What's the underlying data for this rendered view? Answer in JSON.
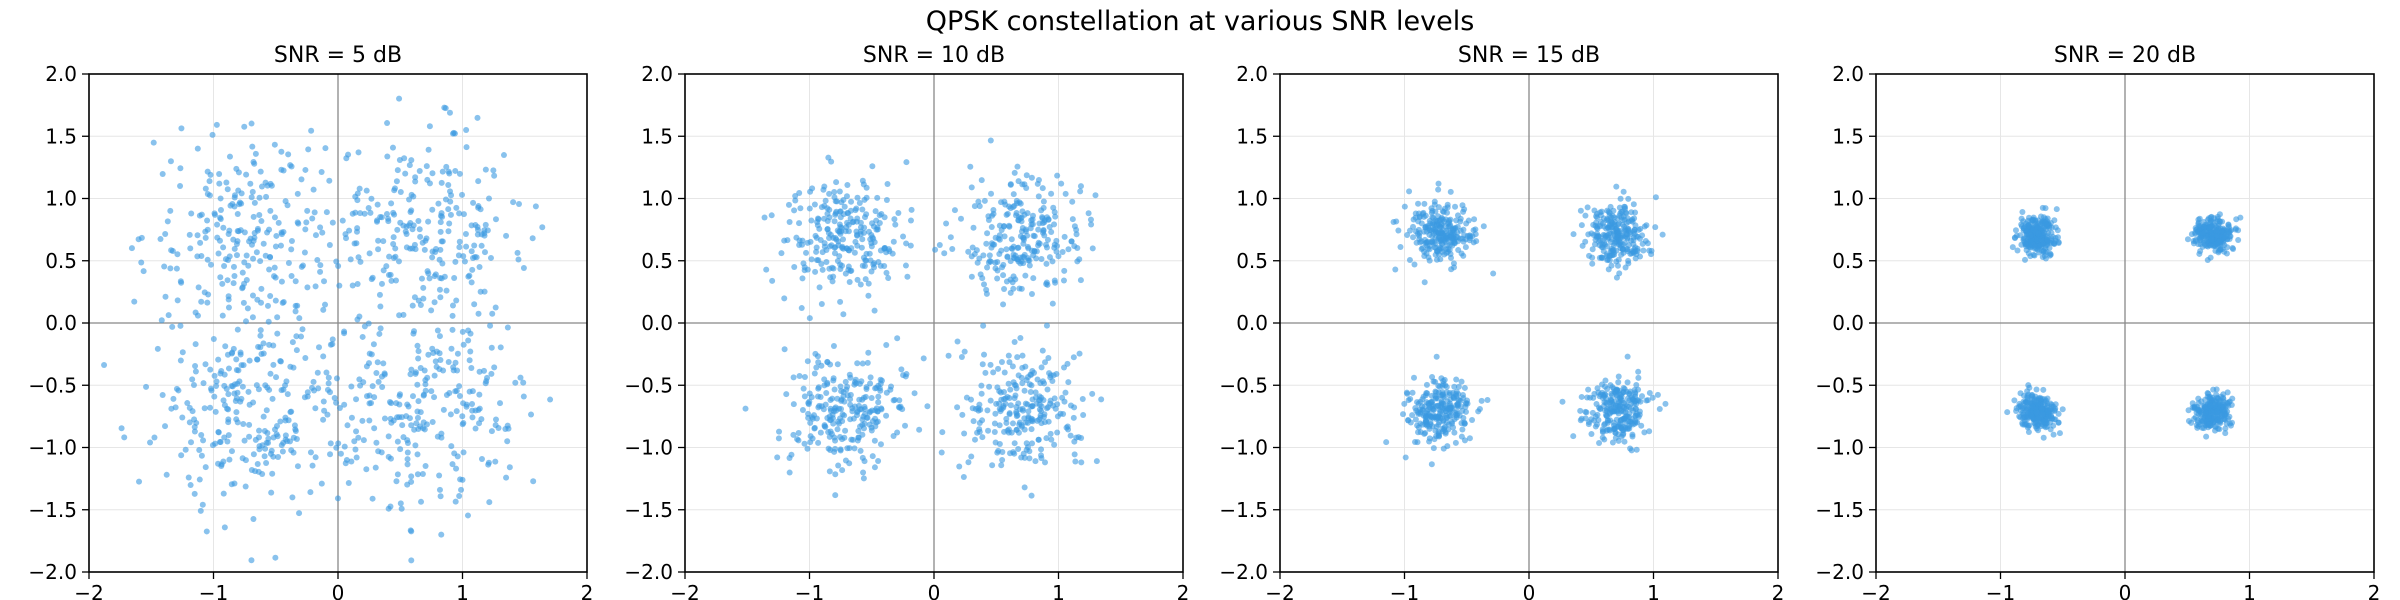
{
  "figure": {
    "title": "QPSK constellation at various SNR levels",
    "point_color": "#3b9ae1",
    "axis_line_color": "#888888",
    "grid_color": "#e6e6e6"
  },
  "chart_data": [
    {
      "type": "scatter",
      "title": "SNR = 5 dB",
      "snr_db": 5,
      "xlabel": "",
      "ylabel": "",
      "xlim": [
        -2,
        2
      ],
      "ylim": [
        -2,
        2
      ],
      "xticks": [
        -2,
        -1,
        0,
        1,
        2
      ],
      "yticks": [
        -2.0,
        -1.5,
        -1.0,
        -0.5,
        0.0,
        0.5,
        1.0,
        1.5,
        2.0
      ],
      "grid": true,
      "reference_lines": {
        "x": 0,
        "y": 0
      },
      "constellation_centers": [
        [
          0.707,
          0.707
        ],
        [
          -0.707,
          0.707
        ],
        [
          -0.707,
          -0.707
        ],
        [
          0.707,
          -0.707
        ]
      ],
      "points_per_symbol": 250,
      "noise_std": 0.4,
      "point_alpha": 0.6
    },
    {
      "type": "scatter",
      "title": "SNR = 10 dB",
      "snr_db": 10,
      "xlabel": "",
      "ylabel": "",
      "xlim": [
        -2,
        2
      ],
      "ylim": [
        -2,
        2
      ],
      "xticks": [
        -2,
        -1,
        0,
        1,
        2
      ],
      "yticks": [
        -2.0,
        -1.5,
        -1.0,
        -0.5,
        0.0,
        0.5,
        1.0,
        1.5,
        2.0
      ],
      "grid": true,
      "reference_lines": {
        "x": 0,
        "y": 0
      },
      "constellation_centers": [
        [
          0.707,
          0.707
        ],
        [
          -0.707,
          0.707
        ],
        [
          -0.707,
          -0.707
        ],
        [
          0.707,
          -0.707
        ]
      ],
      "points_per_symbol": 250,
      "noise_std": 0.24,
      "point_alpha": 0.6
    },
    {
      "type": "scatter",
      "title": "SNR = 15 dB",
      "snr_db": 15,
      "xlabel": "",
      "ylabel": "",
      "xlim": [
        -2,
        2
      ],
      "ylim": [
        -2,
        2
      ],
      "xticks": [
        -2,
        -1,
        0,
        1,
        2
      ],
      "yticks": [
        -2.0,
        -1.5,
        -1.0,
        -0.5,
        0.0,
        0.5,
        1.0,
        1.5,
        2.0
      ],
      "grid": true,
      "reference_lines": {
        "x": 0,
        "y": 0
      },
      "constellation_centers": [
        [
          0.707,
          0.707
        ],
        [
          -0.707,
          0.707
        ],
        [
          -0.707,
          -0.707
        ],
        [
          0.707,
          -0.707
        ]
      ],
      "points_per_symbol": 250,
      "noise_std": 0.13,
      "point_alpha": 0.6
    },
    {
      "type": "scatter",
      "title": "SNR = 20 dB",
      "snr_db": 20,
      "xlabel": "",
      "ylabel": "",
      "xlim": [
        -2,
        2
      ],
      "ylim": [
        -2,
        2
      ],
      "xticks": [
        -2,
        -1,
        0,
        1,
        2
      ],
      "yticks": [
        -2.0,
        -1.5,
        -1.0,
        -0.5,
        0.0,
        0.5,
        1.0,
        1.5,
        2.0
      ],
      "grid": true,
      "reference_lines": {
        "x": 0,
        "y": 0
      },
      "constellation_centers": [
        [
          0.707,
          0.707
        ],
        [
          -0.707,
          0.707
        ],
        [
          -0.707,
          -0.707
        ],
        [
          0.707,
          -0.707
        ]
      ],
      "points_per_symbol": 250,
      "noise_std": 0.075,
      "point_alpha": 0.6
    }
  ]
}
